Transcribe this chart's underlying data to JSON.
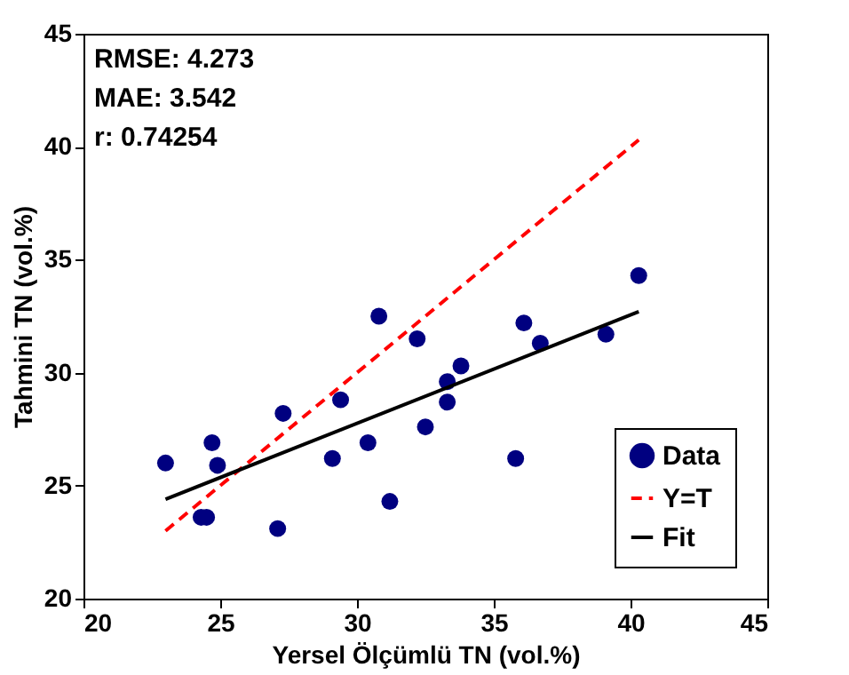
{
  "chart_data": {
    "type": "scatter",
    "xlabel": "Yersel Ölçümlü TN (vol.%)",
    "ylabel": "Tahmini TN (vol.%)",
    "annotations": [
      "RMSE: 4.273",
      "MAE: 3.542",
      "r: 0.74254"
    ],
    "xlim": [
      20,
      45
    ],
    "xticks": [
      20,
      25,
      30,
      35,
      40,
      45
    ],
    "ylim": [
      20,
      45
    ],
    "yticks": [
      20,
      25,
      30,
      35,
      40,
      45
    ],
    "grid": false,
    "legend": "bottom right",
    "series": [
      {
        "name": "Data",
        "marker": "circle",
        "color": "#000080",
        "x": [
          23,
          24.3,
          24.5,
          24.7,
          24.9,
          27.1,
          27.3,
          29.1,
          29.4,
          30.4,
          30.8,
          31.2,
          32.2,
          32.5,
          33.3,
          33.3,
          33.8,
          35.8,
          36.1,
          36.7,
          39.1,
          40.3
        ],
        "values": [
          26,
          23.6,
          23.6,
          26.9,
          25.9,
          23.1,
          28.2,
          26.2,
          28.8,
          26.9,
          32.5,
          24.3,
          31.5,
          27.6,
          29.6,
          28.7,
          30.3,
          26.2,
          32.2,
          31.3,
          31.7,
          34.3
        ]
      },
      {
        "name": "Y=T",
        "type": "line",
        "line_style": "dashed",
        "marker": "none",
        "color": "#ff0000",
        "x": [
          23,
          40.3
        ],
        "values": [
          23,
          40.3
        ]
      },
      {
        "name": "Fit",
        "type": "line",
        "line_style": "solid",
        "marker": "none",
        "color": "#000000",
        "x": [
          23,
          40.3
        ],
        "values": [
          24.4,
          32.7
        ]
      }
    ]
  }
}
